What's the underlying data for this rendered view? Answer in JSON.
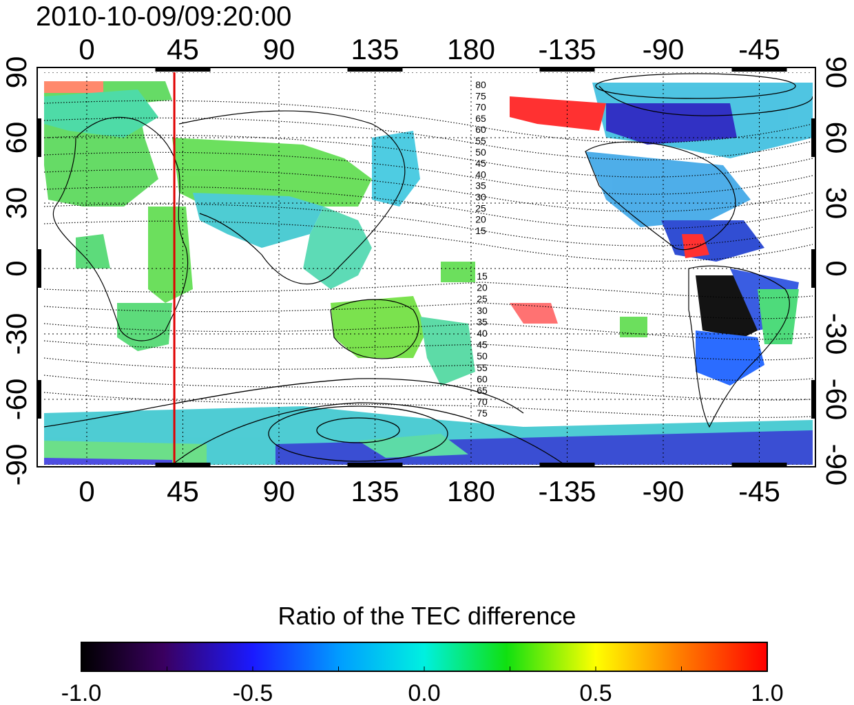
{
  "title": "2010-10-09/09:20:00",
  "map": {
    "lon_ticks": [
      "0",
      "45",
      "90",
      "135",
      "180",
      "-135",
      "-90",
      "-45"
    ],
    "lat_ticks": [
      "90",
      "60",
      "30",
      "0",
      "-30",
      "-60",
      "-90"
    ],
    "lon_tick_values": [
      0,
      45,
      90,
      135,
      180,
      225,
      270,
      315
    ],
    "lat_tick_values": [
      90,
      60,
      30,
      0,
      -30,
      -60,
      -90
    ],
    "lon_range": [
      -20,
      340
    ],
    "lat_range": [
      -90,
      90
    ],
    "marker_line": {
      "lon": 41,
      "color": "#e00000"
    },
    "contour_labels_north": [
      "80",
      "75",
      "70",
      "65",
      "60",
      "55",
      "50",
      "45",
      "40",
      "35",
      "30",
      "25",
      "20",
      "15"
    ],
    "contour_labels_south": [
      "15",
      "20",
      "25",
      "30",
      "35",
      "40",
      "45",
      "50",
      "55",
      "60",
      "65",
      "70",
      "75"
    ],
    "gridlines": true
  },
  "colorbar": {
    "title": "Ratio of the TEC difference",
    "ticks": [
      "-1.0",
      "-0.5",
      "0.0",
      "0.5",
      "1.0"
    ],
    "range": [
      -1.0,
      1.0
    ],
    "colormap": [
      "#000000",
      "#3a0060",
      "#1a1aff",
      "#00e8ff",
      "#10e010",
      "#ffff00",
      "#ff8000",
      "#ff0000"
    ]
  },
  "colors": {
    "marker": "#e00000",
    "land_fill": "#44dd44",
    "positive": "#ff2020",
    "negative": "#1a1aff"
  }
}
